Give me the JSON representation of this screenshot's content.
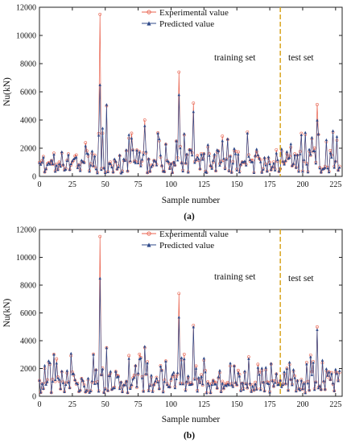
{
  "chart_data": [
    {
      "type": "line",
      "panel_label": "(a)",
      "xlabel": "Sample number",
      "ylabel": "Nu(kN)",
      "xlim": [
        0,
        230
      ],
      "ylim": [
        0,
        12000
      ],
      "xticks": [
        "0",
        "25",
        "50",
        "75",
        "100",
        "125",
        "150",
        "175",
        "200",
        "225"
      ],
      "yticks": [
        "0",
        "2000",
        "4000",
        "6000",
        "8000",
        "10000",
        "12000"
      ],
      "split_x": 183,
      "annotations": {
        "training": "training set",
        "test": "test set"
      },
      "legend": {
        "position": "top-center",
        "entries": [
          "Experimental value",
          "Predicted value"
        ]
      },
      "series": [
        {
          "name": "Experimental value",
          "color": "#e8604c",
          "marker": "open-circle"
        },
        {
          "name": "Predicted value",
          "color": "#2f4a8a",
          "marker": "filled-triangle"
        }
      ],
      "peaks": [
        {
          "x": 46,
          "experimental": 11500,
          "predicted": 6500
        },
        {
          "x": 51,
          "experimental": 5000,
          "predicted": 5100
        },
        {
          "x": 80,
          "experimental": 4000,
          "predicted": 3600
        },
        {
          "x": 106,
          "experimental": 7400,
          "predicted": 5800
        },
        {
          "x": 117,
          "experimental": 5200,
          "predicted": 4600
        },
        {
          "x": 211,
          "experimental": 5100,
          "predicted": 4000
        }
      ],
      "divider_color": "#d9a51f"
    },
    {
      "type": "line",
      "panel_label": "(b)",
      "xlabel": "Sample number",
      "ylabel": "Nu(kN)",
      "xlim": [
        0,
        230
      ],
      "ylim": [
        0,
        12000
      ],
      "xticks": [
        "0",
        "25",
        "50",
        "75",
        "100",
        "125",
        "150",
        "175",
        "200",
        "225"
      ],
      "yticks": [
        "0",
        "2000",
        "4000",
        "6000",
        "8000",
        "10000",
        "12000"
      ],
      "split_x": 183,
      "annotations": {
        "training": "training set",
        "test": "test set"
      },
      "legend": {
        "position": "top-center",
        "entries": [
          "Experimental value",
          "Predicted value"
        ]
      },
      "series": [
        {
          "name": "Experimental value",
          "color": "#e8604c",
          "marker": "open-circle"
        },
        {
          "name": "Predicted value",
          "color": "#2f4a8a",
          "marker": "filled-triangle"
        }
      ],
      "peaks": [
        {
          "x": 46,
          "experimental": 11500,
          "predicted": 8500
        },
        {
          "x": 51,
          "experimental": 3500,
          "predicted": 3500
        },
        {
          "x": 80,
          "experimental": 3500,
          "predicted": 3600
        },
        {
          "x": 106,
          "experimental": 7400,
          "predicted": 5700
        },
        {
          "x": 117,
          "experimental": 5100,
          "predicted": 5000
        },
        {
          "x": 211,
          "experimental": 5000,
          "predicted": 4800
        }
      ],
      "divider_color": "#d9a51f"
    }
  ]
}
